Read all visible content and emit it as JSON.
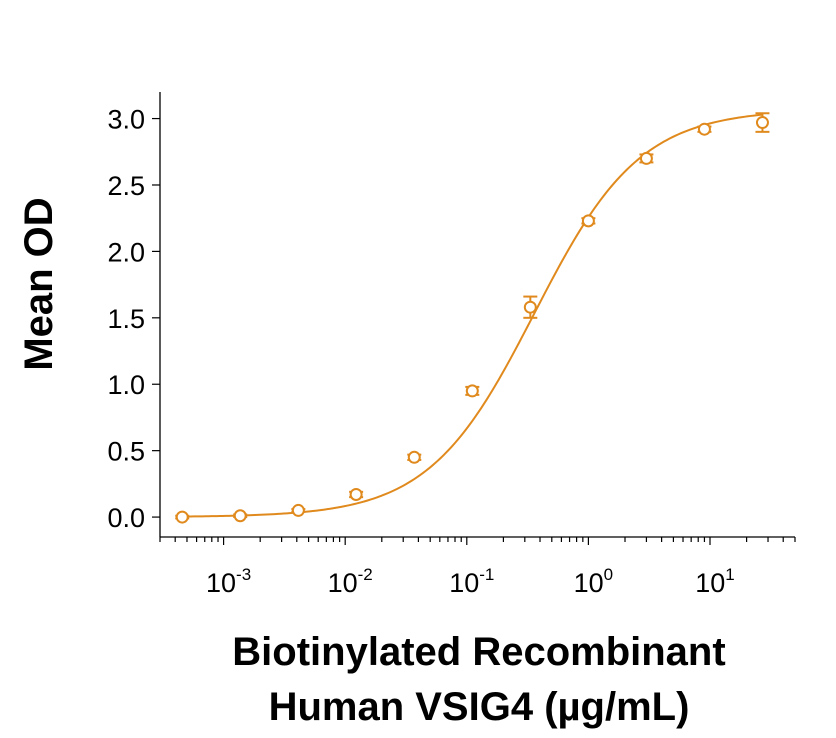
{
  "chart_data": {
    "type": "scatter",
    "title": "",
    "ylabel": "Mean OD",
    "xlabel_lines": [
      "Biotinylated Recombinant",
      "Human VSIG4 (µg/mL)"
    ],
    "x_scale": "log",
    "xlim": [
      0.0003,
      50
    ],
    "ylim": [
      -0.15,
      3.2
    ],
    "yticks": [
      {
        "value": 0.0,
        "label": "0.0"
      },
      {
        "value": 0.5,
        "label": "0.5"
      },
      {
        "value": 1.0,
        "label": "1.0"
      },
      {
        "value": 1.5,
        "label": "1.5"
      },
      {
        "value": 2.0,
        "label": "2.0"
      },
      {
        "value": 2.5,
        "label": "2.5"
      },
      {
        "value": 3.0,
        "label": "3.0"
      }
    ],
    "xticks": [
      {
        "value": 0.001,
        "base": "10",
        "exp": "-3"
      },
      {
        "value": 0.01,
        "base": "10",
        "exp": "-2"
      },
      {
        "value": 0.1,
        "base": "10",
        "exp": "-1"
      },
      {
        "value": 1,
        "base": "10",
        "exp": "0"
      },
      {
        "value": 10,
        "base": "10",
        "exp": "1"
      }
    ],
    "color": "#e08a1e",
    "series": [
      {
        "points": [
          {
            "x": 0.000457,
            "y": 0.0,
            "err": 0.01
          },
          {
            "x": 0.00137,
            "y": 0.01,
            "err": 0.01
          },
          {
            "x": 0.00412,
            "y": 0.05,
            "err": 0.01
          },
          {
            "x": 0.0123,
            "y": 0.17,
            "err": 0.02
          },
          {
            "x": 0.037,
            "y": 0.45,
            "err": 0.02
          },
          {
            "x": 0.111,
            "y": 0.95,
            "err": 0.03
          },
          {
            "x": 0.333,
            "y": 1.58,
            "err": 0.08
          },
          {
            "x": 1.0,
            "y": 2.23,
            "err": 0.02
          },
          {
            "x": 3.0,
            "y": 2.7,
            "err": 0.03
          },
          {
            "x": 9.0,
            "y": 2.92,
            "err": 0.02
          },
          {
            "x": 27.0,
            "y": 2.97,
            "err": 0.07
          }
        ],
        "fit": {
          "model": "4PL",
          "bottom": 0.0,
          "top": 3.07,
          "ec50": 0.36,
          "hill": 1.0
        }
      }
    ]
  }
}
